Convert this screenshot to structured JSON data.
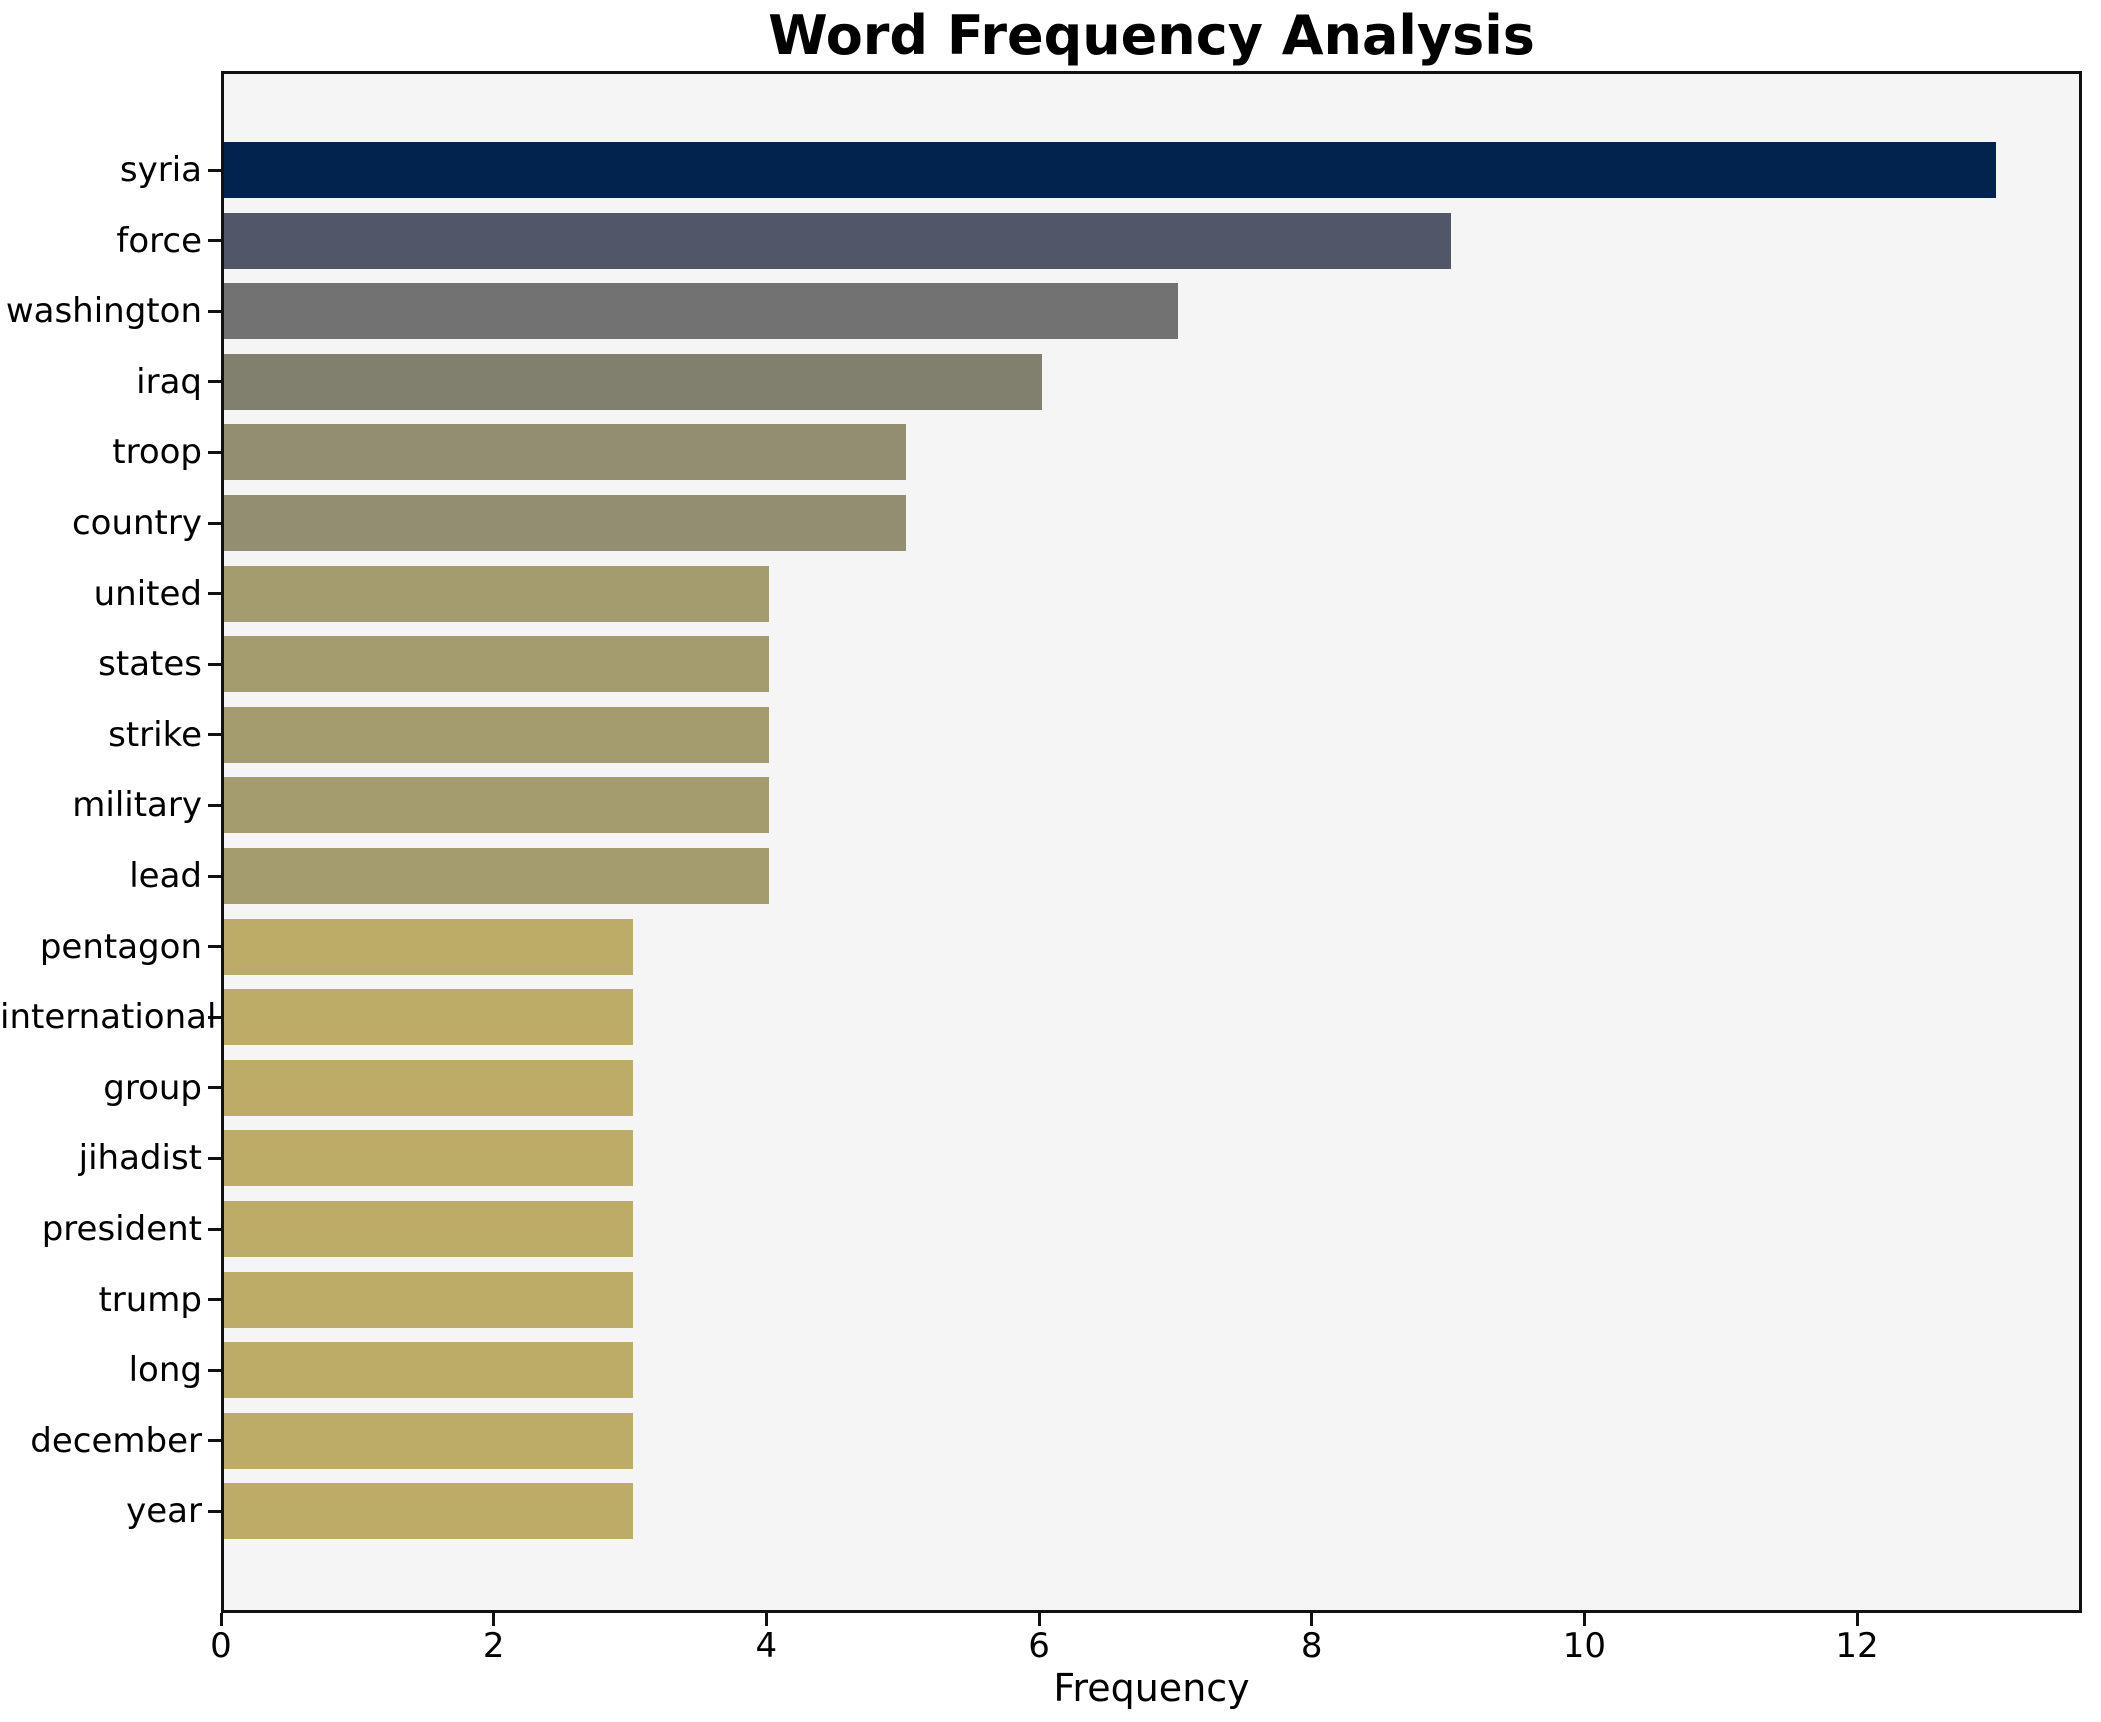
{
  "figure": {
    "title": "Word Frequency Analysis",
    "background_color": "#ffffff",
    "plot_background_color": "#f5f5f6",
    "spine_color": "#111111"
  },
  "chart_data": {
    "type": "bar",
    "orientation": "horizontal",
    "title": "Word Frequency Analysis",
    "xlabel": "Frequency",
    "ylabel": "",
    "categories": [
      "syria",
      "force",
      "washington",
      "iraq",
      "troop",
      "country",
      "united",
      "states",
      "strike",
      "military",
      "lead",
      "pentagon",
      "international",
      "group",
      "jihadist",
      "president",
      "trump",
      "long",
      "december",
      "year"
    ],
    "values": [
      13,
      9,
      7,
      6,
      5,
      5,
      4,
      4,
      4,
      4,
      4,
      3,
      3,
      3,
      3,
      3,
      3,
      3,
      3,
      3
    ],
    "bar_colors": [
      "#02234e",
      "#515769",
      "#717271",
      "#81806f",
      "#938e72",
      "#938e72",
      "#a49c6e",
      "#a49c6e",
      "#a49c6e",
      "#a49c6e",
      "#a49c6e",
      "#bcac68",
      "#bcac68",
      "#bcac68",
      "#bcac68",
      "#bcac68",
      "#bcac68",
      "#bcac68",
      "#bcac68",
      "#bcac68"
    ],
    "x_ticks": [
      0,
      2,
      4,
      6,
      8,
      10,
      12
    ],
    "xlim": [
      0,
      13.65
    ],
    "grid": false,
    "legend_position": "none"
  }
}
